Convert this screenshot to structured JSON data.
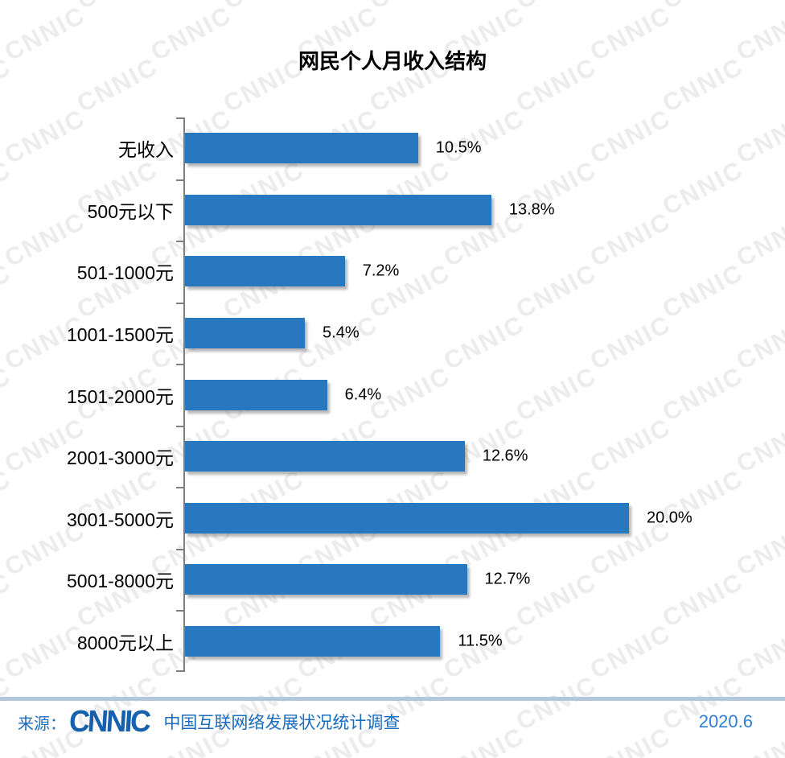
{
  "title": "网民个人月收入结构",
  "chart_data": {
    "type": "bar",
    "orientation": "horizontal",
    "title": "网民个人月收入结构",
    "xlabel": "",
    "ylabel": "",
    "xlim": [
      0,
      25
    ],
    "grid": false,
    "legend": false,
    "bar_color": "#2778BE",
    "categories": [
      "无收入",
      "500元以下",
      "501-1000元",
      "1001-1500元",
      "1501-2000元",
      "2001-3000元",
      "3001-5000元",
      "5001-8000元",
      "8000元以上"
    ],
    "values": [
      10.5,
      13.8,
      7.2,
      5.4,
      6.4,
      12.6,
      20.0,
      12.7,
      11.5
    ],
    "value_labels": [
      "10.5%",
      "13.8%",
      "7.2%",
      "5.4%",
      "6.4%",
      "12.6%",
      "20.0%",
      "12.7%",
      "11.5%"
    ]
  },
  "watermark": {
    "text": "CNNIC",
    "color": "#ececec"
  },
  "footer": {
    "source_prefix": "来源：",
    "logo_text": "CNNIC",
    "source_text": "中国互联网络发展状况统计调查",
    "date": "2020.6"
  },
  "colors": {
    "bar": "#2778BE",
    "axis": "#7f7f7f",
    "text": "#000000",
    "footer_border": "#b3c7dc",
    "footer_text": "#1a6cbe",
    "date_text": "#2e7fce"
  }
}
